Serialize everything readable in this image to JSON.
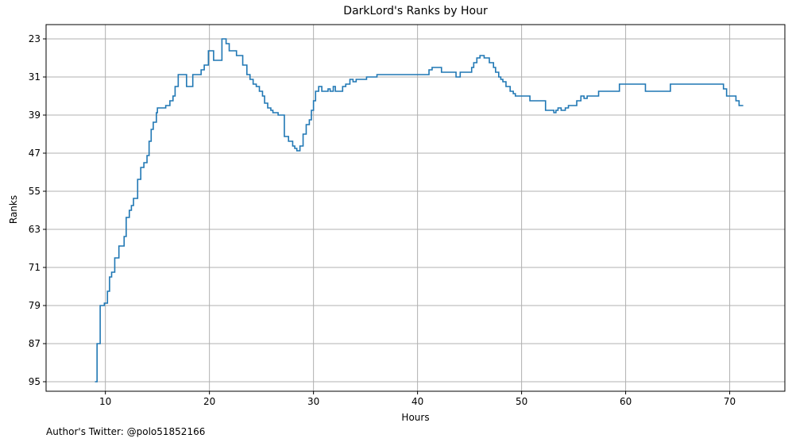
{
  "chart_data": {
    "type": "line",
    "step": true,
    "title": "DarkLord's Ranks by Hour",
    "xlabel": "Hours",
    "ylabel": "Ranks",
    "xlim": [
      4.3,
      75.3
    ],
    "ylim": [
      97,
      20
    ],
    "y_inverted": true,
    "grid": true,
    "x_ticks": [
      10,
      20,
      30,
      40,
      50,
      60,
      70
    ],
    "y_ticks": [
      23,
      31,
      39,
      47,
      55,
      63,
      71,
      79,
      87,
      95
    ],
    "line_color": "#1f77b4",
    "series": [
      {
        "x": [
          9.0,
          9.2,
          9.5,
          9.9,
          10.2,
          10.4,
          10.6,
          10.9,
          11.3,
          11.8,
          12.0,
          12.3,
          12.5,
          12.7,
          13.1,
          13.4,
          13.7,
          14.0,
          14.2,
          14.4,
          14.6,
          14.9,
          15.0,
          15.8,
          16.2,
          16.5,
          16.7,
          17.0,
          17.8,
          18.4,
          19.2,
          19.5,
          19.9,
          20.4,
          21.2,
          21.6,
          21.9,
          22.6,
          23.2,
          23.6,
          23.9,
          24.2,
          24.5,
          24.8,
          25.1,
          25.3,
          25.6,
          25.9,
          26.1,
          26.6,
          27.2,
          27.6,
          28.0,
          28.2,
          28.4,
          28.7,
          29.0,
          29.3,
          29.6,
          29.8,
          30.0,
          30.2,
          30.5,
          30.8,
          31.4,
          31.6,
          31.9,
          32.1,
          32.8,
          33.1,
          33.5,
          33.8,
          34.1,
          34.7,
          35.1,
          36.1,
          41.1,
          41.4,
          42.3,
          43.7,
          44.1,
          45.2,
          45.4,
          45.7,
          46.0,
          46.4,
          46.9,
          47.3,
          47.5,
          47.8,
          48.0,
          48.2,
          48.5,
          48.9,
          49.2,
          49.4,
          49.7,
          50.8,
          52.3,
          53.1,
          53.3,
          53.5,
          53.8,
          54.2,
          54.5,
          55.3,
          55.7,
          56.0,
          56.3,
          57.4,
          59.4,
          61.9,
          64.3,
          69.4,
          69.7,
          70.0,
          70.6,
          70.9,
          71.3
        ],
        "y": [
          95,
          87,
          79,
          78.5,
          76,
          73,
          72,
          69,
          66.5,
          64.5,
          60.5,
          59,
          58,
          56.5,
          52.5,
          50,
          49,
          47.5,
          44.5,
          42,
          40.5,
          38.5,
          37.5,
          37,
          36,
          35,
          33,
          30.5,
          33,
          30.5,
          29.5,
          28.5,
          25.5,
          27.5,
          23,
          24,
          25.5,
          26.5,
          28.5,
          30.5,
          31.5,
          32.5,
          33,
          34,
          35,
          36.5,
          37.5,
          38,
          38.5,
          39,
          43.5,
          44.5,
          45.5,
          46,
          46.5,
          45.5,
          43,
          41,
          40,
          38,
          36,
          34,
          33,
          34,
          33.5,
          34,
          33,
          34,
          33,
          32.5,
          31.5,
          32,
          31.5,
          31.5,
          31,
          30.5,
          29.5,
          29,
          30,
          31,
          30,
          29,
          28,
          27,
          26.5,
          27,
          28,
          29,
          30,
          31,
          31.5,
          32,
          33,
          34,
          34.5,
          35,
          35,
          36,
          38,
          38.5,
          38,
          37.5,
          38,
          37.5,
          37,
          36,
          35,
          35.5,
          35,
          34,
          32.5,
          34,
          32.5,
          33.5,
          35,
          35,
          36,
          37,
          37
        ]
      }
    ]
  },
  "footnote": "Author's Twitter: @polo51852166"
}
